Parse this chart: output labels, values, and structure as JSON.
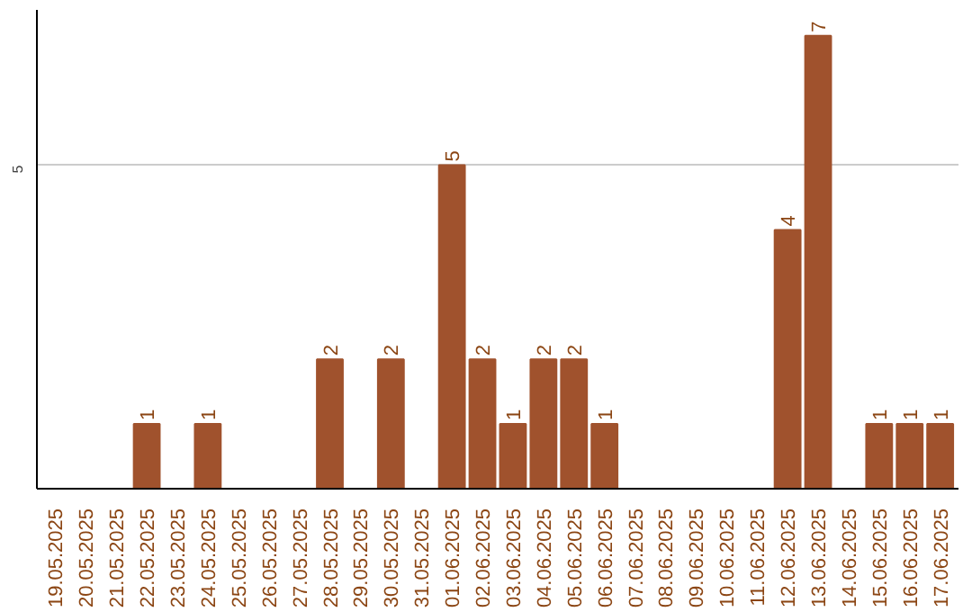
{
  "chart_data": {
    "type": "bar",
    "categories": [
      "19.05.2025",
      "20.05.2025",
      "21.05.2025",
      "22.05.2025",
      "23.05.2025",
      "24.05.2025",
      "25.05.2025",
      "26.05.2025",
      "27.05.2025",
      "28.05.2025",
      "29.05.2025",
      "30.05.2025",
      "31.05.2025",
      "01.06.2025",
      "02.06.2025",
      "03.06.2025",
      "04.06.2025",
      "05.06.2025",
      "06.06.2025",
      "07.06.2025",
      "08.06.2025",
      "09.06.2025",
      "10.06.2025",
      "11.06.2025",
      "12.06.2025",
      "13.06.2025",
      "14.06.2025",
      "15.06.2025",
      "16.06.2025",
      "17.06.2025"
    ],
    "values": [
      0,
      0,
      0,
      1,
      0,
      1,
      0,
      0,
      0,
      2,
      0,
      2,
      0,
      5,
      2,
      1,
      2,
      2,
      1,
      0,
      0,
      0,
      0,
      0,
      4,
      7,
      0,
      1,
      1,
      1
    ],
    "value_labels": [
      null,
      null,
      null,
      "1",
      null,
      "1",
      null,
      null,
      null,
      "2",
      null,
      "2",
      null,
      "5",
      "2",
      "1",
      "2",
      "2",
      "1",
      null,
      null,
      null,
      null,
      null,
      "4",
      "7",
      null,
      "1",
      "1",
      "1"
    ],
    "color": "#a0522d",
    "ylim": [
      0,
      7.4
    ],
    "yticks": [
      5
    ],
    "grid": "y"
  }
}
